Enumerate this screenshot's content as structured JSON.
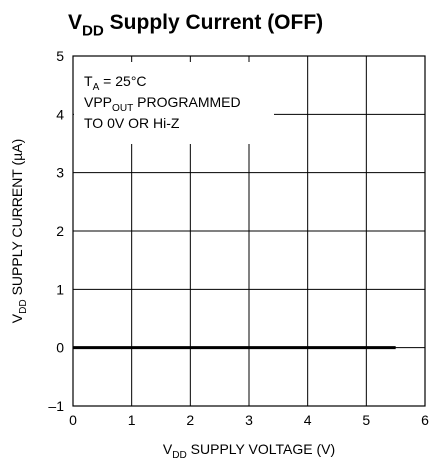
{
  "chart_data": {
    "type": "line",
    "title": [
      "V",
      "DD",
      " Supply Current (OFF)"
    ],
    "annotations": [
      [
        "T",
        "A",
        " = 25°C"
      ],
      [
        "VPP",
        "OUT",
        " PROGRAMMED"
      ],
      [
        "TO 0V OR Hi-Z"
      ]
    ],
    "xlabel": [
      "V",
      "DD",
      " SUPPLY VOLTAGE (V)"
    ],
    "ylabel": [
      "V",
      "DD",
      " SUPPLY CURRENT (µA)"
    ],
    "x": [
      0,
      5.5
    ],
    "series": [
      {
        "color": "#000000",
        "values": [
          0,
          0
        ]
      }
    ],
    "xlim": [
      0,
      6
    ],
    "xticks": [
      0,
      1,
      2,
      3,
      4,
      5,
      6
    ],
    "ylim": [
      -1,
      5
    ],
    "yticks": [
      {
        "value": -1,
        "label": "–1"
      },
      0,
      1,
      2,
      3,
      4,
      5
    ],
    "grid": true
  }
}
